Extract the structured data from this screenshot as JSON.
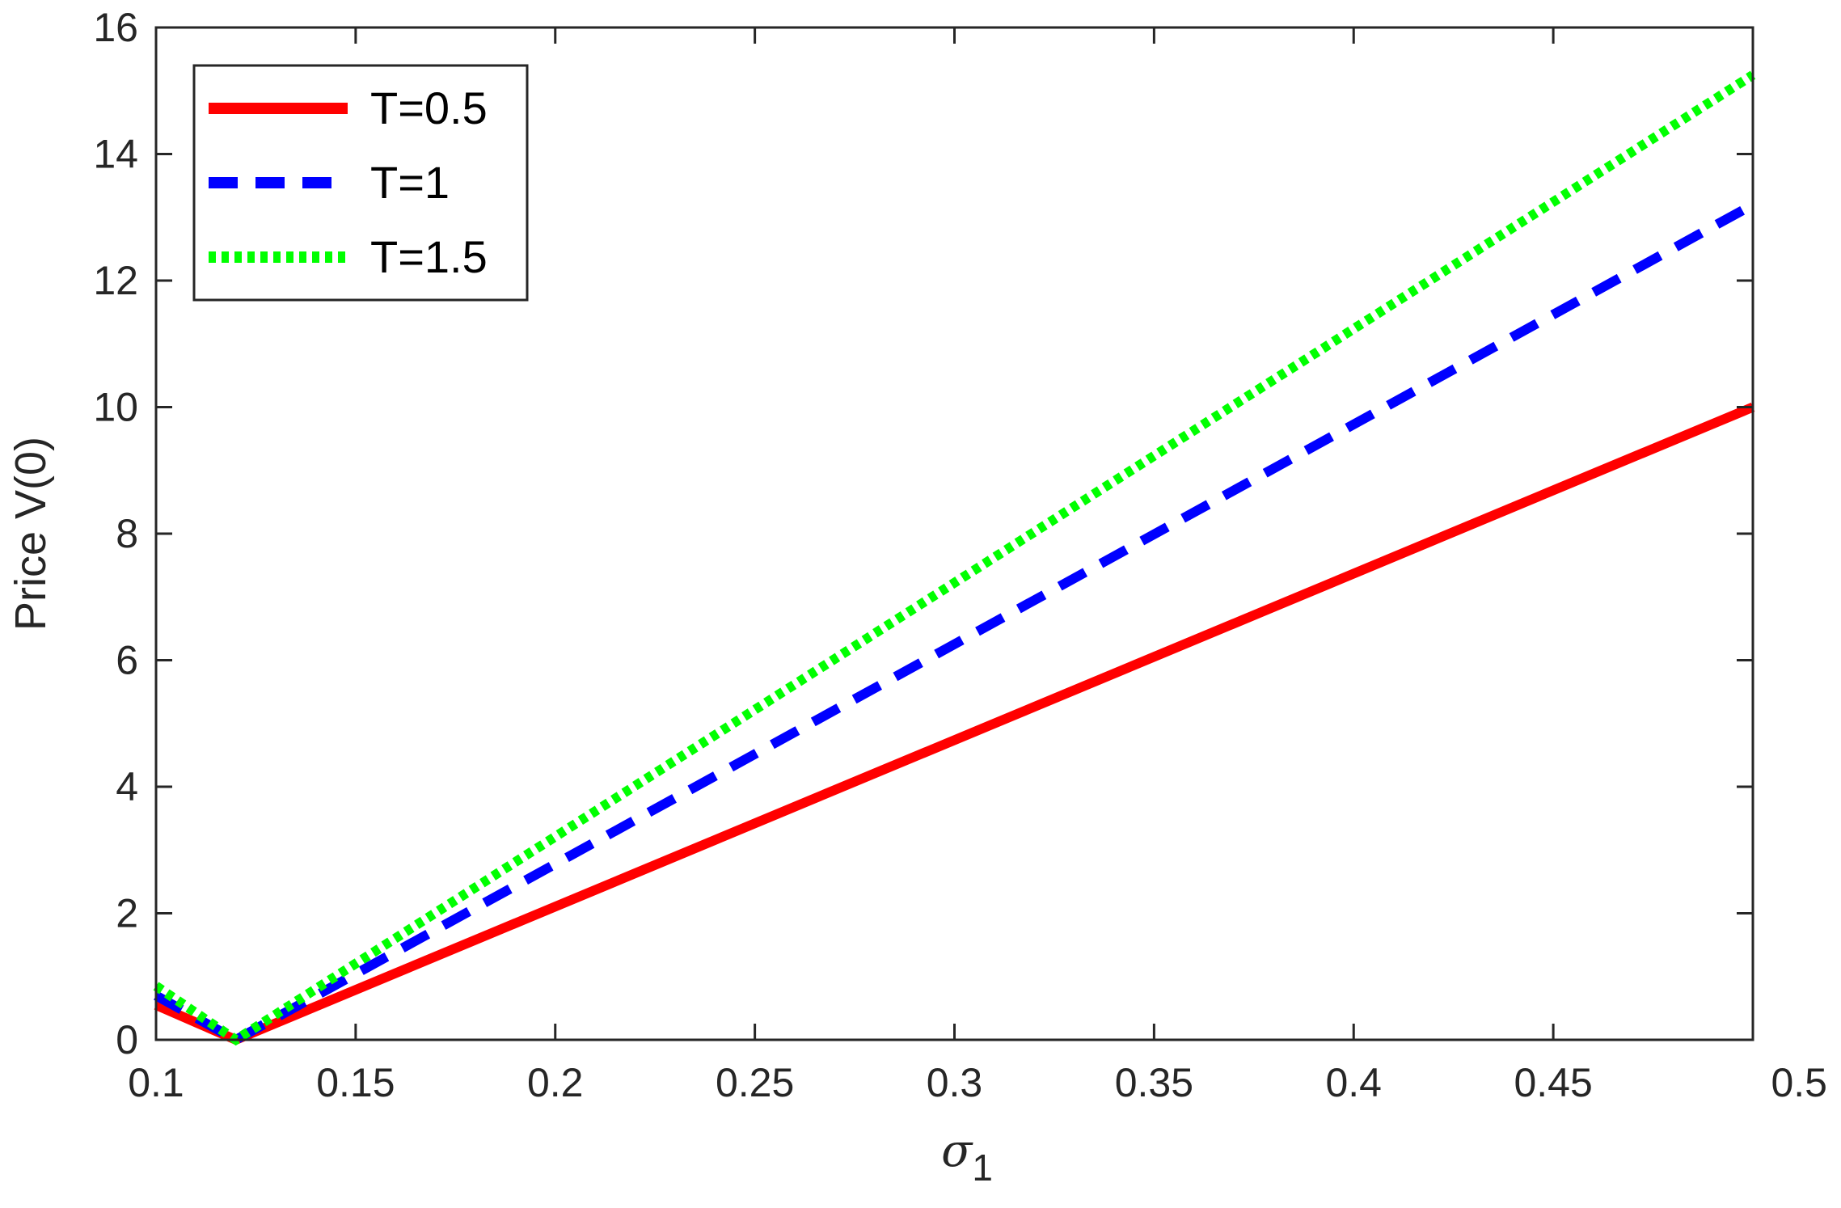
{
  "chart_data": {
    "type": "line",
    "xlabel": {
      "symbol": "σ",
      "subscript": "1"
    },
    "ylabel": "Price V(0)",
    "xlim": [
      0.1,
      0.5
    ],
    "ylim": [
      0,
      16
    ],
    "xticks": [
      0.1,
      0.15,
      0.2,
      0.25,
      0.3,
      0.35,
      0.4,
      0.45,
      0.5
    ],
    "xtick_labels": [
      "0.1",
      "0.15",
      "0.2",
      "0.25",
      "0.3",
      "0.35",
      "0.4",
      "0.45",
      "0.5"
    ],
    "yticks": [
      0,
      2,
      4,
      6,
      8,
      10,
      12,
      14,
      16
    ],
    "ytick_labels": [
      "0",
      "2",
      "4",
      "6",
      "8",
      "10",
      "12",
      "14",
      "16"
    ],
    "grid": false,
    "legend_position": "top-left",
    "series": [
      {
        "name": "T=0.5",
        "color": "#ff0000",
        "style": "solid",
        "x": [
          0.1,
          0.12,
          0.5
        ],
        "y": [
          0.55,
          0.0,
          10.0
        ]
      },
      {
        "name": "T=1",
        "color": "#0000ff",
        "style": "dashed",
        "x": [
          0.1,
          0.12,
          0.5
        ],
        "y": [
          0.7,
          0.0,
          13.2
        ]
      },
      {
        "name": "T=1.5",
        "color": "#00ff00",
        "style": "dotted",
        "x": [
          0.1,
          0.12,
          0.5
        ],
        "y": [
          0.85,
          0.0,
          15.25
        ]
      }
    ]
  }
}
